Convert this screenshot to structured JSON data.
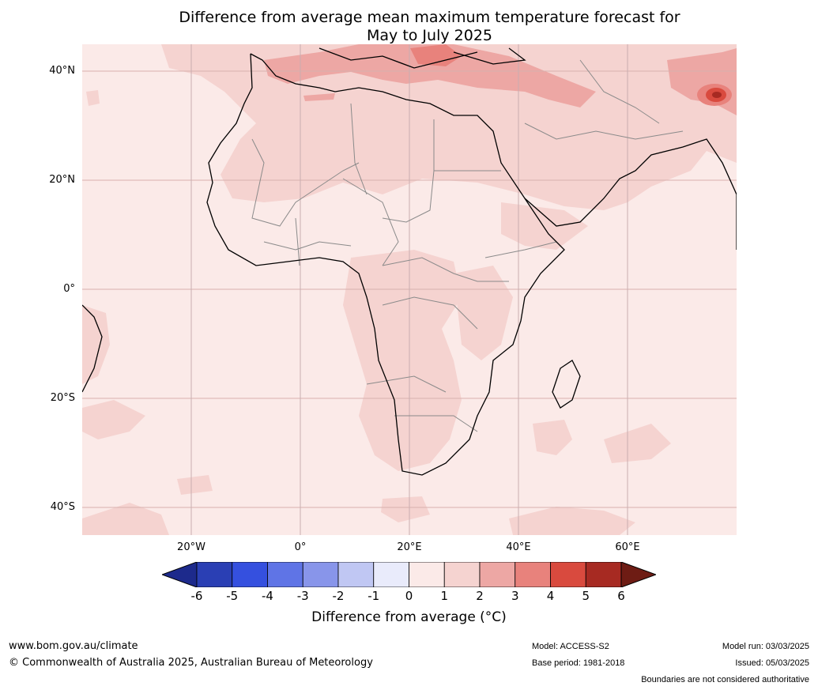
{
  "title": {
    "line1": "Difference from average mean maximum temperature forecast for",
    "line2": "May to July 2025"
  },
  "map": {
    "region": "Africa and Middle East",
    "lat_labels": [
      "40°N",
      "20°N",
      "0°",
      "20°S",
      "40°S"
    ],
    "lon_labels": [
      "20°W",
      "0°",
      "20°E",
      "40°E",
      "60°E"
    ],
    "lat_range": [
      -45,
      45
    ],
    "lon_range": [
      -40,
      80
    ],
    "background_color": "#fbeae8"
  },
  "colorbar": {
    "ticks": [
      "-6",
      "-5",
      "-4",
      "-3",
      "-2",
      "-1",
      "0",
      "1",
      "2",
      "3",
      "4",
      "5",
      "6"
    ],
    "colors": [
      "#1d2a8c",
      "#2a3fb4",
      "#3550df",
      "#5f74e6",
      "#8895ea",
      "#c0c7f3",
      "#e9ebfb",
      "#fbeae8",
      "#f5d3d0",
      "#eda7a4",
      "#e8827c",
      "#d94a3e",
      "#a72a22",
      "#6e1c14"
    ],
    "label": "Difference from average (°C)"
  },
  "footer": {
    "website": "www.bom.gov.au/climate",
    "copyright": "© Commonwealth of Australia 2025, Australian Bureau of Meteorology",
    "model": "Model: ACCESS-S2",
    "base_period": "Base period: 1981-2018",
    "model_run": "Model run: 03/03/2025",
    "issued": "Issued: 05/03/2025",
    "disclaimer": "Boundaries are not considered authoritative"
  }
}
